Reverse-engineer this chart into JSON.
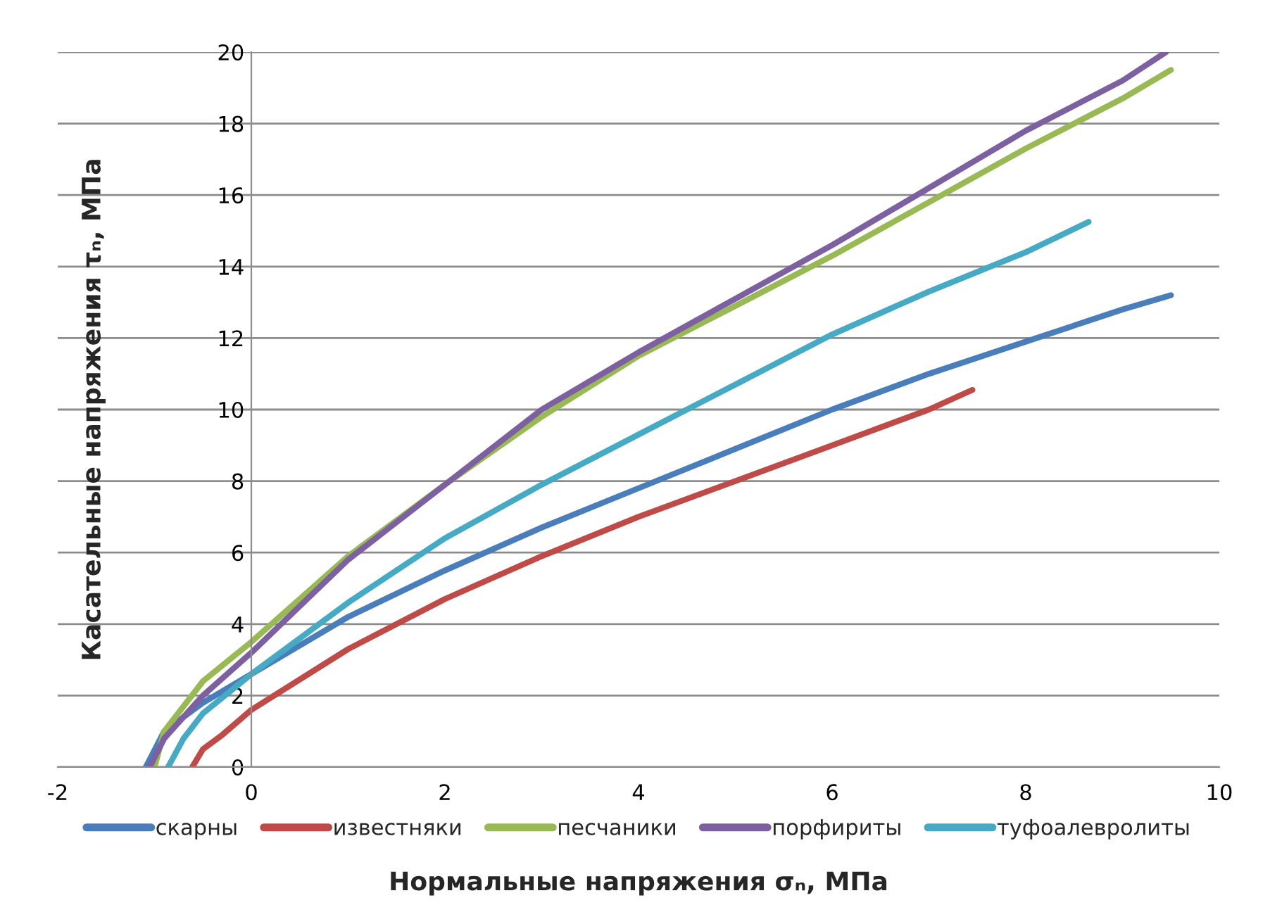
{
  "chart_data": {
    "type": "line",
    "xlabel": "Нормальные напряжения σₙ, МПа",
    "ylabel": "Касательные напряжения τₙ, МПа",
    "xlim": [
      -2,
      10
    ],
    "xticks": [
      -2,
      0,
      2,
      4,
      6,
      8,
      10
    ],
    "ylim": [
      0,
      20
    ],
    "yticks": [
      0,
      2,
      4,
      6,
      8,
      10,
      12,
      14,
      16,
      18,
      20
    ],
    "grid": "y",
    "legend": "bottom",
    "marker": "none",
    "line_style": "solid",
    "series": [
      {
        "name": "скарны",
        "color": "#4a7ebb",
        "x": [
          -1.09,
          -0.9,
          -0.5,
          0,
          1,
          2,
          3,
          4,
          5,
          6,
          7,
          8,
          9,
          9.5
        ],
        "values": [
          0,
          1.0,
          1.8,
          2.6,
          4.2,
          5.5,
          6.7,
          7.8,
          8.9,
          10.0,
          11.0,
          11.9,
          12.8,
          13.2
        ]
      },
      {
        "name": "известняки",
        "color": "#be4b48",
        "x": [
          -0.61,
          -0.5,
          -0.3,
          0,
          1,
          2,
          3,
          4,
          5,
          6,
          7,
          7.45
        ],
        "values": [
          0,
          0.5,
          0.9,
          1.6,
          3.3,
          4.7,
          5.9,
          7.0,
          8.0,
          9.0,
          10.0,
          10.55
        ]
      },
      {
        "name": "песчаники",
        "color": "#98b954",
        "x": [
          -1.0,
          -0.9,
          -0.5,
          0,
          1,
          2,
          3,
          4,
          5,
          6,
          7,
          8,
          9,
          9.5
        ],
        "values": [
          0,
          1.0,
          2.4,
          3.5,
          5.9,
          7.9,
          9.8,
          11.5,
          12.9,
          14.3,
          15.8,
          17.3,
          18.7,
          19.5
        ]
      },
      {
        "name": "порфириты",
        "color": "#7d60a0",
        "x": [
          -1.05,
          -0.9,
          -0.5,
          0,
          1,
          2,
          3,
          4,
          5,
          6,
          7,
          8,
          9,
          9.45
        ],
        "values": [
          0,
          0.8,
          2.0,
          3.2,
          5.8,
          7.9,
          10.0,
          11.6,
          13.1,
          14.6,
          16.2,
          17.8,
          19.2,
          20.0
        ]
      },
      {
        "name": "туфоалевролиты",
        "color": "#46aac5",
        "x": [
          -0.86,
          -0.7,
          -0.5,
          0,
          1,
          2,
          3,
          4,
          5,
          6,
          7,
          8,
          8.65
        ],
        "values": [
          0,
          0.8,
          1.5,
          2.6,
          4.6,
          6.4,
          7.9,
          9.3,
          10.7,
          12.1,
          13.3,
          14.4,
          15.25
        ]
      }
    ]
  }
}
